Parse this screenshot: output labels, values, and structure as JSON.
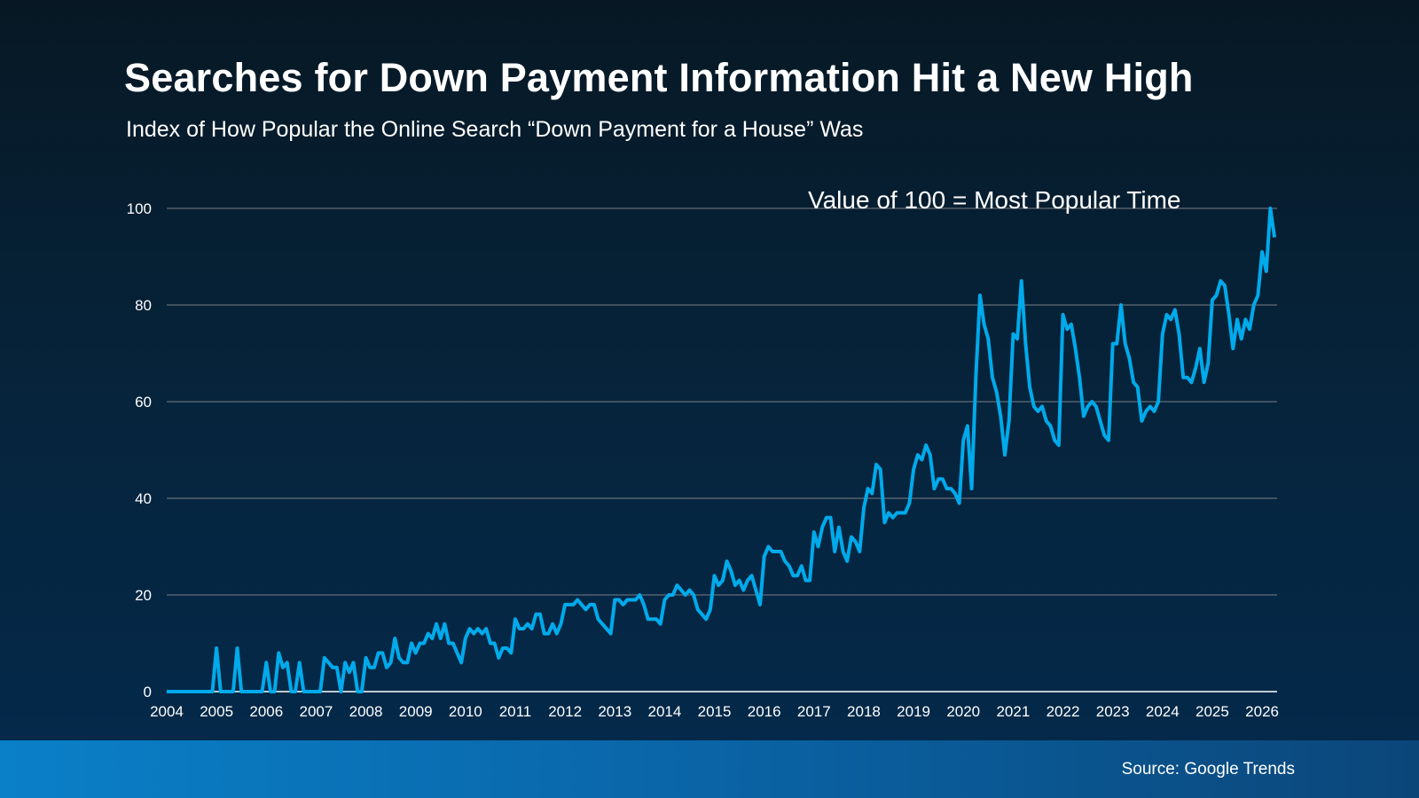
{
  "chart_data": {
    "type": "line",
    "title": "Searches for Down Payment Information Hit a New High",
    "subtitle": "Index of How Popular the Online Search “Down Payment for a House” Was",
    "annotation": "Value of 100 = Most Popular Time",
    "xlabel": "",
    "ylabel": "",
    "ylim": [
      0,
      100
    ],
    "yticks": [
      "0",
      "20",
      "40",
      "60",
      "80",
      "100"
    ],
    "xticks": [
      "2004",
      "2005",
      "2006",
      "2007",
      "2008",
      "2009",
      "2010",
      "2011",
      "2012",
      "2013",
      "2014",
      "2015",
      "2016",
      "2017",
      "2018",
      "2019",
      "2020",
      "2021",
      "2022",
      "2023",
      "2024",
      "2025",
      "2026"
    ],
    "grid": true,
    "line_color": "#00aaeb",
    "x_start": "2004-01",
    "frequency": "monthly",
    "values": [
      0,
      0,
      0,
      0,
      0,
      0,
      0,
      0,
      0,
      0,
      0,
      0,
      9,
      0,
      0,
      0,
      0,
      9,
      0,
      0,
      0,
      0,
      0,
      0,
      6,
      0,
      0,
      8,
      5,
      6,
      0,
      0,
      6,
      0,
      0,
      0,
      0,
      0,
      7,
      6,
      5,
      5,
      0,
      6,
      4,
      6,
      0,
      0,
      7,
      5,
      5,
      8,
      8,
      5,
      6,
      11,
      7,
      6,
      6,
      10,
      8,
      10,
      10,
      12,
      11,
      14,
      11,
      14,
      10,
      10,
      8,
      6,
      11,
      13,
      12,
      13,
      12,
      13,
      10,
      10,
      7,
      9,
      9,
      8,
      15,
      13,
      13,
      14,
      13,
      16,
      16,
      12,
      12,
      14,
      12,
      14,
      18,
      18,
      18,
      19,
      18,
      17,
      18,
      18,
      15,
      14,
      13,
      12,
      19,
      19,
      18,
      19,
      19,
      19,
      20,
      18,
      15,
      15,
      15,
      14,
      19,
      20,
      20,
      22,
      21,
      20,
      21,
      20,
      17,
      16,
      15,
      17,
      24,
      22,
      23,
      27,
      25,
      22,
      23,
      21,
      23,
      24,
      21,
      18,
      28,
      30,
      29,
      29,
      29,
      27,
      26,
      24,
      24,
      26,
      23,
      23,
      33,
      30,
      34,
      36,
      36,
      29,
      34,
      29,
      27,
      32,
      31,
      29,
      38,
      42,
      41,
      47,
      46,
      35,
      37,
      36,
      37,
      37,
      37,
      39,
      46,
      49,
      48,
      51,
      49,
      42,
      44,
      44,
      42,
      42,
      41,
      39,
      52,
      55,
      42,
      65,
      82,
      76,
      73,
      65,
      62,
      57,
      49,
      56,
      74,
      73,
      85,
      72,
      63,
      59,
      58,
      59,
      56,
      55,
      52,
      51,
      78,
      75,
      76,
      71,
      65,
      57,
      59,
      60,
      59,
      56,
      53,
      52,
      72,
      72,
      80,
      72,
      69,
      64,
      63,
      56,
      58,
      59,
      58,
      60,
      74,
      78,
      77,
      79,
      74,
      65,
      65,
      64,
      67,
      71,
      64,
      68,
      81,
      82,
      85,
      84,
      78,
      71,
      77,
      73,
      77,
      75,
      80,
      82,
      91,
      87,
      100,
      94
    ]
  },
  "footer": {
    "source": "Source: Google Trends"
  }
}
